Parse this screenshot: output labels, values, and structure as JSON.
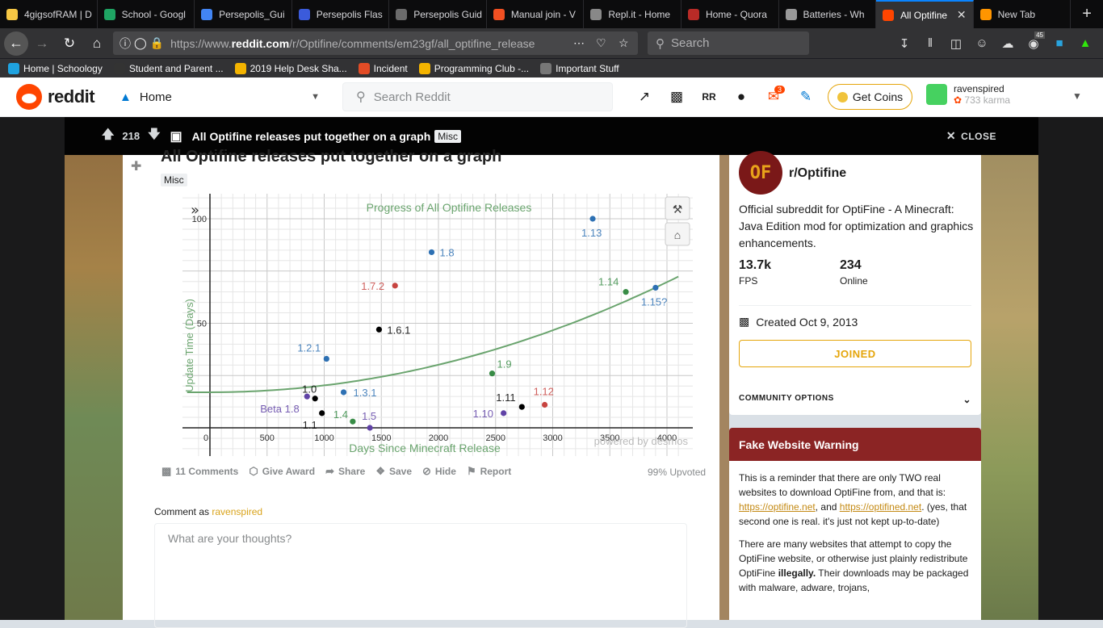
{
  "browser": {
    "tabs": [
      {
        "label": "4gigsofRAM | D",
        "color": "#f6c744"
      },
      {
        "label": "School - Googl",
        "color": "#1fa463"
      },
      {
        "label": "Persepolis_Gui",
        "color": "#4285f4"
      },
      {
        "label": "Persepolis Flas",
        "color": "#3b5bdb"
      },
      {
        "label": "Persepolis Guid",
        "color": "#6b6b6b"
      },
      {
        "label": "Manual join - V",
        "color": "#f25022"
      },
      {
        "label": "Repl.it - Home",
        "color": "#888888"
      },
      {
        "label": "Home - Quora",
        "color": "#b92b27"
      },
      {
        "label": "Batteries - Wh",
        "color": "#999999"
      },
      {
        "label": "All Optifine",
        "color": "#ff4500"
      },
      {
        "label": "New Tab",
        "color": "#ff9500"
      }
    ],
    "url_prefix": "https://www.",
    "url_host": "reddit.com",
    "url_path": "/r/Optifine/comments/em23gf/all_optifine_release",
    "search_placeholder": "Search",
    "addon_badge": "45",
    "bookmarks": [
      "Home | Schoology",
      "Student and Parent ...",
      "2019 Help Desk Sha...",
      "Incident",
      "Programming Club -...",
      "Important Stuff"
    ]
  },
  "reddit": {
    "logo_text": "reddit",
    "home_label": "Home",
    "search_placeholder": "Search Reddit",
    "mail_badge": "3",
    "get_coins": "Get Coins",
    "username": "ravenspired",
    "karma": "733 karma"
  },
  "postbar": {
    "score": "218",
    "title": "All Optifine releases put together on a graph",
    "flair": "Misc",
    "close": "CLOSE"
  },
  "post": {
    "title": "All Optifine releases put together on a graph",
    "flair": "Misc",
    "actions": {
      "comments": "11 Comments",
      "award": "Give Award",
      "share": "Share",
      "save": "Save",
      "hide": "Hide",
      "report": "Report"
    },
    "upvoted": "99% Upvoted",
    "comment_as_prefix": "Comment as",
    "comment_user": "ravenspired",
    "comment_placeholder": "What are your thoughts?"
  },
  "chart_data": {
    "type": "scatter",
    "title": "Progress of All Optifine Releases",
    "xlabel": "Days Since Minecraft Release",
    "ylabel": "Update Time (Days)",
    "xlim": [
      -50,
      4100
    ],
    "ylim": [
      -10,
      110
    ],
    "x_ticks": [
      0,
      500,
      1000,
      1500,
      2000,
      2500,
      3000,
      3500,
      4000
    ],
    "y_ticks": [
      50,
      100
    ],
    "watermark": "powered by desmos",
    "points": [
      {
        "label": "Beta 1.8",
        "x": 850,
        "y": 15,
        "color": "#6042a6"
      },
      {
        "label": "1.0",
        "x": 920,
        "y": 14,
        "color": "#000000"
      },
      {
        "label": "1.1",
        "x": 980,
        "y": 7,
        "color": "#000000"
      },
      {
        "label": "1.2.1",
        "x": 1020,
        "y": 33,
        "color": "#2d70b3"
      },
      {
        "label": "1.3.1",
        "x": 1170,
        "y": 17,
        "color": "#2d70b3"
      },
      {
        "label": "1.4",
        "x": 1250,
        "y": 3,
        "color": "#388c46"
      },
      {
        "label": "1.5",
        "x": 1400,
        "y": 0,
        "color": "#6042a6"
      },
      {
        "label": "1.6.1",
        "x": 1480,
        "y": 47,
        "color": "#000000"
      },
      {
        "label": "1.7.2",
        "x": 1620,
        "y": 68,
        "color": "#c74440"
      },
      {
        "label": "1.8",
        "x": 1940,
        "y": 84,
        "color": "#2d70b3"
      },
      {
        "label": "1.9",
        "x": 2470,
        "y": 26,
        "color": "#388c46"
      },
      {
        "label": "1.10",
        "x": 2570,
        "y": 7,
        "color": "#6042a6"
      },
      {
        "label": "1.11",
        "x": 2730,
        "y": 10,
        "color": "#000000"
      },
      {
        "label": "1.12",
        "x": 2930,
        "y": 11,
        "color": "#c74440"
      },
      {
        "label": "1.13",
        "x": 3350,
        "y": 100,
        "color": "#2d70b3"
      },
      {
        "label": "1.14",
        "x": 3640,
        "y": 65,
        "color": "#388c46"
      },
      {
        "label": "1.15?",
        "x": 3900,
        "y": 67,
        "color": "#2d70b3"
      }
    ],
    "trend": {
      "color": "#6aa46e",
      "x0": 0,
      "y0": 17,
      "x1": 4050,
      "y1": 71
    }
  },
  "sidebar": {
    "sub_icon": "OF",
    "sub_name": "r/Optifine",
    "description": "Official subreddit for OptiFine - A Minecraft: Java Edition mod for optimization and graphics enhancements.",
    "members": "13.7k",
    "members_label": "FPS",
    "online": "234",
    "online_label": "Online",
    "created": "Created Oct 9, 2013",
    "joined": "JOINED",
    "community_options": "COMMUNITY OPTIONS"
  },
  "warning": {
    "title": "Fake Website Warning",
    "p1_a": "This is a reminder that there are only TWO real websites to download OptiFine from, and that is:",
    "link1": "https://optifine.net",
    "p1_b": ", and",
    "link2": "https://optifined.net",
    "p1_c": ". (yes, that second one is real. it's just not kept up-to-date)",
    "p2_a": "There are many websites that attempt to copy the OptiFine website, or otherwise just plainly redistribute OptiFine",
    "p2_bold": "illegally.",
    "p2_b": "Their downloads may be packaged with malware, adware, trojans,"
  }
}
